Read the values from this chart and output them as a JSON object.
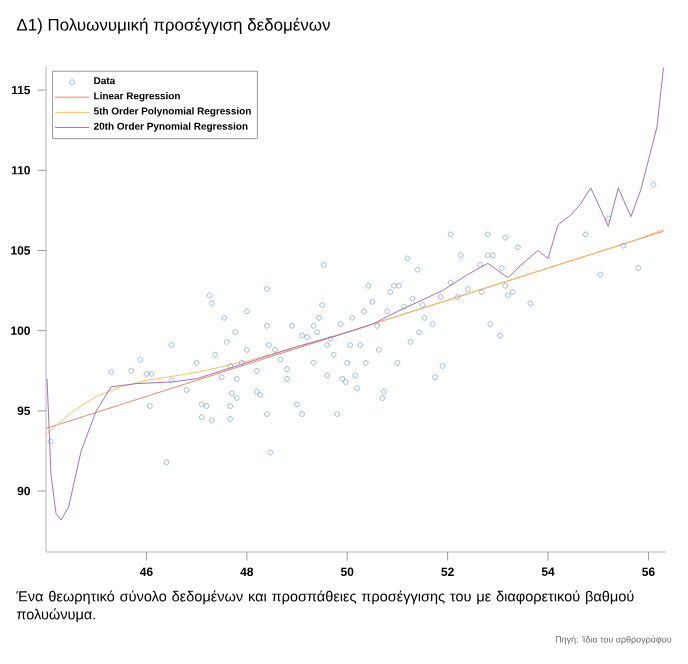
{
  "chart_data": {
    "type": "scatter",
    "title": "Δ1) Πολυωνυμική προσέγγιση δεδομένων",
    "annotations": [
      "Ένα θεωρητικό σύνολο δεδομένων και προσπάθειες προσέγγισης του με διαφορετικού βαθμού πολυώνυμα.",
      "Πηγή: Ίδια του αρθρογράφου"
    ],
    "xlim": [
      44,
      56.35
    ],
    "ylim": [
      86.2,
      116.5
    ],
    "xticks": [
      46,
      48,
      50,
      52,
      54,
      56
    ],
    "yticks": [
      90,
      95,
      100,
      105,
      110,
      115
    ],
    "legend": "top left",
    "grid": false,
    "series": [
      {
        "name": "Data",
        "marker": "circle",
        "color": "#6f9ac8",
        "x": [
          44.09,
          45.3,
          45.7,
          45.88,
          46.0,
          46.1,
          46.07,
          46.5,
          46.5,
          46.4,
          46.8,
          47.0,
          47.1,
          47.1,
          47.2,
          47.26,
          47.3,
          47.3,
          47.37,
          47.5,
          47.55,
          47.6,
          47.67,
          47.7,
          47.67,
          47.67,
          47.77,
          47.8,
          47.8,
          47.9,
          48.0,
          48.0,
          48.2,
          48.2,
          48.27,
          48.4,
          48.4,
          48.44,
          48.4,
          48.47,
          48.56,
          48.67,
          48.8,
          48.9,
          48.8,
          49.0,
          49.1,
          49.1,
          49.2,
          49.33,
          49.33,
          49.4,
          49.44,
          49.5,
          49.53,
          49.6,
          49.6,
          49.67,
          49.73,
          49.8,
          49.87,
          49.9,
          49.97,
          50.0,
          50.06,
          50.1,
          50.16,
          50.2,
          50.26,
          50.33,
          50.37,
          50.42,
          50.5,
          50.6,
          50.63,
          50.7,
          50.73,
          50.8,
          50.86,
          50.93,
          51.0,
          51.03,
          51.13,
          51.2,
          51.26,
          51.3,
          51.4,
          51.43,
          51.5,
          51.54,
          51.7,
          51.75,
          51.86,
          51.9,
          52.06,
          52.2,
          52.26,
          52.4,
          52.65,
          52.68,
          52.85,
          52.9,
          53.05,
          53.08,
          53.15,
          53.2,
          53.3,
          53.65,
          55.04,
          55.8,
          52.06,
          52.8,
          53.15,
          53.4,
          52.8,
          54.75,
          55.2,
          55.5,
          56.1
        ],
        "values": [
          93.1,
          97.4,
          97.5,
          98.2,
          97.3,
          97.3,
          95.3,
          99.1,
          96.9,
          91.8,
          96.3,
          98.0,
          95.4,
          94.6,
          95.3,
          102.2,
          101.7,
          94.4,
          98.5,
          97.1,
          100.8,
          99.3,
          97.8,
          96.1,
          95.3,
          94.5,
          99.9,
          97.0,
          95.8,
          98.0,
          101.2,
          98.8,
          96.2,
          97.5,
          96.0,
          100.3,
          102.6,
          99.1,
          94.8,
          92.4,
          98.8,
          98.2,
          97.0,
          100.3,
          97.6,
          95.4,
          94.8,
          99.7,
          99.6,
          100.3,
          98.0,
          99.9,
          100.8,
          101.6,
          104.1,
          99.1,
          97.2,
          99.5,
          98.5,
          94.8,
          100.4,
          97.0,
          96.8,
          98.0,
          99.1,
          100.8,
          97.2,
          96.4,
          99.1,
          101.2,
          98.0,
          102.8,
          101.8,
          100.3,
          98.8,
          95.8,
          96.2,
          101.2,
          102.4,
          102.8,
          98.0,
          102.8,
          101.5,
          104.5,
          99.3,
          102.0,
          103.8,
          99.9,
          101.6,
          100.8,
          100.4,
          97.1,
          102.1,
          97.8,
          103.0,
          102.1,
          104.7,
          102.6,
          104.1,
          102.4,
          100.4,
          104.7,
          99.7,
          103.9,
          102.8,
          102.2,
          102.4,
          101.7,
          103.5,
          103.9,
          106.0,
          106.0,
          105.8,
          105.2,
          104.7,
          106.0,
          107.0,
          105.3,
          109.1
        ]
      },
      {
        "name": "Linear Regression",
        "type": "line",
        "marker": "none",
        "color": "#e38a74",
        "x": [
          44,
          56.3
        ],
        "values": [
          93.9,
          106.2
        ]
      },
      {
        "name": "5th Order Polynomial Regression",
        "type": "line",
        "marker": "none",
        "color": "#f2c16e",
        "x": [
          44,
          44.5,
          45,
          45.5,
          46,
          47,
          48,
          49,
          50,
          51,
          52,
          53,
          54,
          55,
          55.7,
          56.3
        ],
        "values": [
          93.5,
          94.9,
          95.9,
          96.5,
          96.9,
          97.4,
          98.1,
          99.0,
          99.9,
          100.9,
          101.9,
          102.9,
          103.9,
          104.9,
          105.6,
          106.3
        ]
      },
      {
        "name": "20th Order Pynomial Regression",
        "type": "line",
        "marker": "none",
        "color": "#a472b4",
        "x": [
          44.02,
          44.1,
          44.2,
          44.3,
          44.45,
          44.7,
          45.0,
          45.3,
          45.8,
          46.5,
          47.0,
          48.0,
          49.0,
          49.8,
          50.5,
          51.0,
          51.9,
          52.4,
          52.8,
          53.2,
          53.5,
          53.8,
          54.0,
          54.2,
          54.45,
          54.65,
          54.85,
          55.0,
          55.2,
          55.4,
          55.65,
          55.85,
          56.17,
          56.3
        ],
        "values": [
          97.0,
          91.0,
          88.6,
          88.2,
          89.0,
          92.5,
          95.0,
          96.5,
          96.7,
          96.8,
          97.0,
          98.0,
          99.0,
          99.7,
          100.4,
          101.2,
          102.5,
          103.5,
          104.2,
          103.3,
          104.2,
          105.0,
          104.5,
          106.6,
          107.2,
          107.9,
          108.9,
          107.9,
          106.5,
          108.9,
          107.1,
          108.8,
          112.7,
          116.4
        ]
      }
    ]
  }
}
